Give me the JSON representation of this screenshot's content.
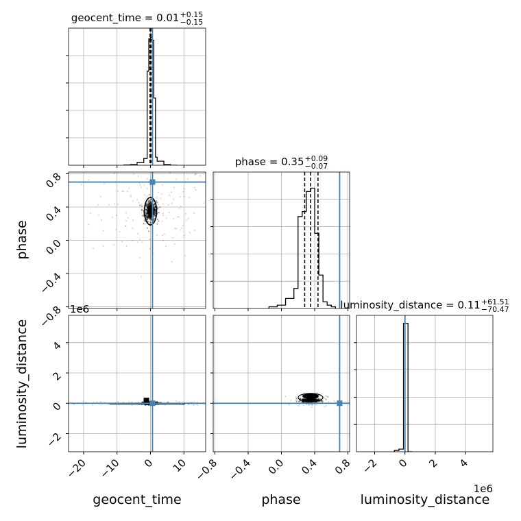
{
  "colors": {
    "truth": "#4682b4",
    "hist": "#000000",
    "grid": "#b0b0b0",
    "samples": "#000000"
  },
  "chart_data": {
    "type": "corner",
    "parameters": [
      "geocent_time",
      "phase",
      "luminosity_distance"
    ],
    "truths": {
      "geocent_time": 0.6,
      "phase": 0.7,
      "luminosity_distance": 0
    },
    "titles": [
      {
        "param": "geocent_time",
        "text": "geocent_time = 0.01",
        "plus": "+0.15",
        "minus": "−0.15"
      },
      {
        "param": "phase",
        "text": "phase = 0.35",
        "plus": "+0.09",
        "minus": "−0.07"
      },
      {
        "param": "luminosity_distance",
        "text": "luminosity_distance = 0.11",
        "plus": "+61.51",
        "minus": "−70.47"
      }
    ],
    "ranges": {
      "geocent_time": [
        -24.5,
        16.5
      ],
      "phase": [
        -0.82,
        0.82
      ],
      "luminosity_distance": [
        -3200000,
        5800000
      ]
    },
    "ticks": {
      "geocent_time": {
        "values": [
          -20,
          -10,
          0,
          10
        ],
        "labels": [
          "−20",
          "−10",
          "0",
          "10"
        ]
      },
      "phase": {
        "values": [
          -0.8,
          -0.4,
          0.0,
          0.4,
          0.8
        ],
        "labels": [
          "−0.8",
          "−0.4",
          "0.0",
          "0.4",
          "0.8"
        ]
      },
      "luminosity_distance": {
        "values": [
          -2000000,
          0,
          2000000,
          4000000
        ],
        "labels": [
          "−2",
          "0",
          "2",
          "4"
        ],
        "offset": "1e6"
      }
    },
    "marginals": {
      "geocent_time": {
        "edges": [
          -8,
          -6,
          -4,
          -2,
          -1,
          -0.5,
          0,
          0.5,
          1,
          1.5,
          2,
          4,
          6,
          8
        ],
        "counts": [
          0.2,
          0.5,
          2,
          5,
          70,
          94,
          95,
          93,
          50,
          6,
          3,
          0.5,
          0
        ],
        "quantiles": [
          -0.14,
          0.01,
          0.16
        ],
        "max": 100
      },
      "phase": {
        "edges": [
          -0.15,
          -0.05,
          0.05,
          0.15,
          0.2,
          0.25,
          0.3,
          0.35,
          0.4,
          0.45,
          0.5,
          0.55,
          0.6,
          0.65
        ],
        "counts": [
          1,
          2,
          6,
          12,
          55,
          58,
          70,
          72,
          45,
          20,
          4,
          2,
          1
        ],
        "quantiles": [
          0.28,
          0.35,
          0.44
        ],
        "max": 80
      },
      "luminosity_distance": {
        "edges": [
          -700000,
          -400000,
          -100000,
          200000,
          500000
        ],
        "counts": [
          1,
          2,
          96,
          0
        ],
        "quantiles": [
          -70,
          0.11,
          61.6
        ],
        "max": 100
      }
    },
    "joint_2d": [
      {
        "x": "geocent_time",
        "y": "phase",
        "center": [
          0.01,
          0.35
        ],
        "spread": [
          0.9,
          0.06
        ],
        "outlier_spread": [
          9,
          0.3
        ]
      },
      {
        "x": "geocent_time",
        "y": "luminosity_distance",
        "center": [
          0.01,
          0
        ],
        "spread": [
          1.2,
          40000
        ],
        "outlier_spread": [
          12,
          60000
        ]
      },
      {
        "x": "phase",
        "y": "luminosity_distance",
        "center": [
          0.35,
          200000
        ],
        "spread": [
          0.05,
          60000
        ],
        "outlier_spread": [
          0.1,
          200000
        ]
      }
    ]
  }
}
